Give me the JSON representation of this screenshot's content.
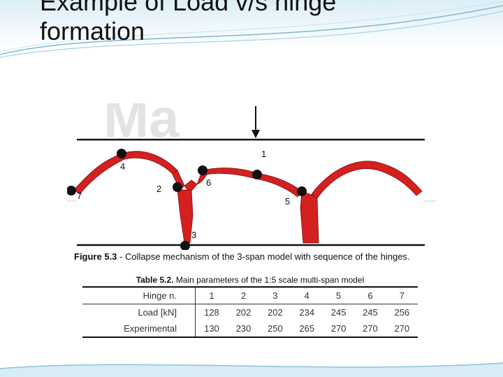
{
  "slide": {
    "title_line1": "Example of Load v/s hinge",
    "title_line2": "formation"
  },
  "figure": {
    "watermark": "Ma",
    "hinge_labels": [
      "1",
      "2",
      "3",
      "4",
      "5",
      "6",
      "7"
    ],
    "caption_label": "Figure 5.3",
    "caption_text": " - Collapse mechanism of the 3-span model with sequence of the hinges.",
    "colors": {
      "hinge_band": "#d42020",
      "beam_line": "#111111"
    }
  },
  "table": {
    "caption_label": "Table 5.2.",
    "caption_text": "  Main parameters of the 1:5 scale multi-span model",
    "header": {
      "label": "Hinge n.",
      "values": [
        "1",
        "2",
        "3",
        "4",
        "5",
        "6",
        "7"
      ]
    },
    "rows": [
      {
        "label": "Load [kN]",
        "values": [
          "128",
          "202",
          "202",
          "234",
          "245",
          "245",
          "256"
        ]
      },
      {
        "label": "Experimental",
        "values": [
          "130",
          "230",
          "250",
          "265",
          "270",
          "270",
          "270"
        ]
      }
    ]
  }
}
